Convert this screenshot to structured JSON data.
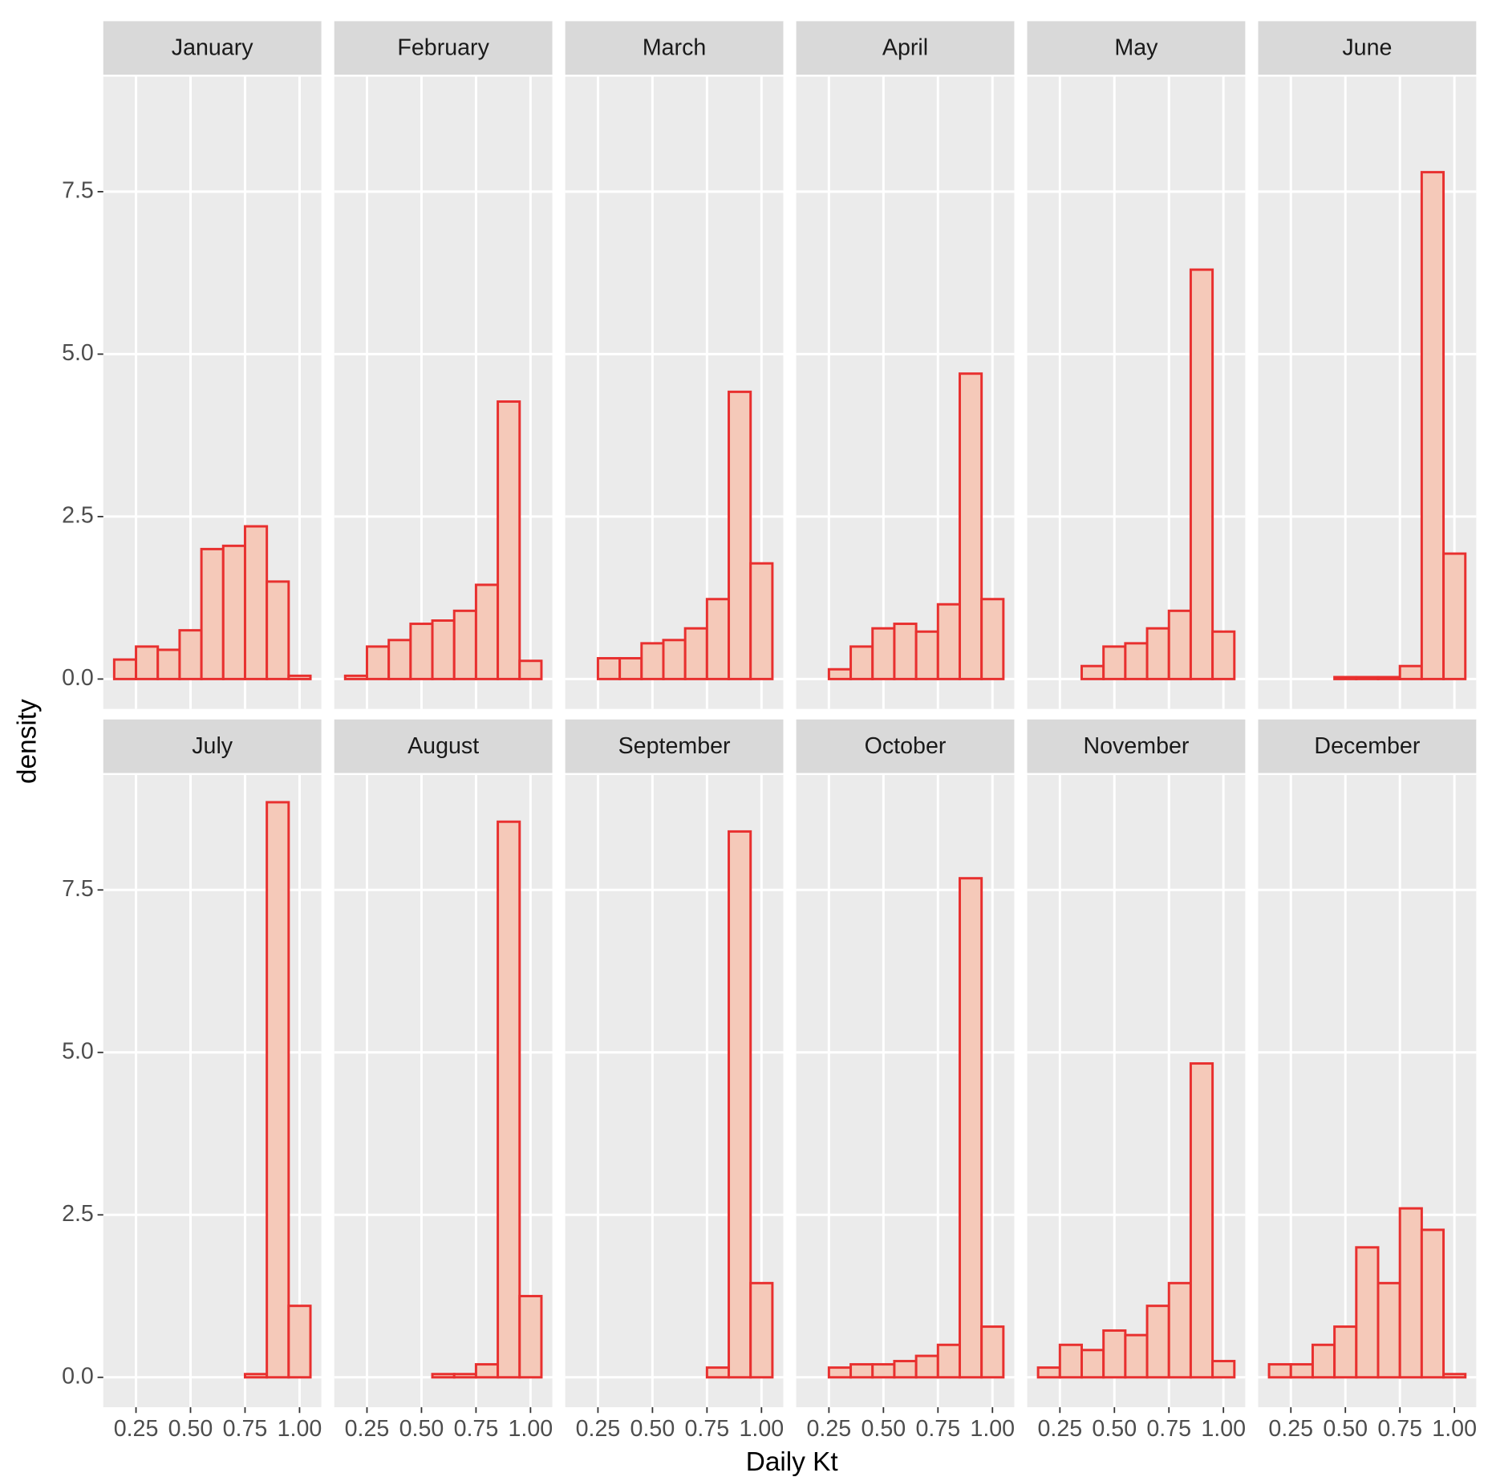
{
  "chart_data": {
    "type": "histogram",
    "x_label": "Daily Kt",
    "y_label": "density",
    "color": "#e8302f",
    "fill": "#f5c9b9",
    "grid": true,
    "bins": [
      0.15,
      0.25,
      0.35,
      0.45,
      0.55,
      0.65,
      0.75,
      0.85,
      0.95,
      1.05
    ],
    "xlim": [
      0.1,
      1.1
    ],
    "ylim": [
      -0.46,
      9.27
    ],
    "xticks": [
      0.25,
      {
        "value": 0.5,
        "label": "0.50"
      },
      0.75,
      {
        "value": 1,
        "label": "1.00"
      }
    ],
    "yticks": [
      {
        "value": 0,
        "label": "0.0"
      },
      2.5,
      {
        "value": 5,
        "label": "5.0"
      },
      7.5
    ],
    "facets": [
      {
        "title": "January",
        "values": [
          0.3,
          0.5,
          0.45,
          0.75,
          2.0,
          2.05,
          2.35,
          1.5,
          0.05
        ]
      },
      {
        "title": "February",
        "values": [
          0.05,
          0.5,
          0.6,
          0.85,
          0.9,
          1.05,
          1.45,
          4.27,
          0.28
        ]
      },
      {
        "title": "March",
        "values": [
          0,
          0.32,
          0.32,
          0.55,
          0.6,
          0.78,
          1.23,
          4.42,
          1.78
        ]
      },
      {
        "title": "April",
        "values": [
          0,
          0.15,
          0.5,
          0.78,
          0.85,
          0.73,
          1.15,
          4.7,
          1.23
        ]
      },
      {
        "title": "May",
        "values": [
          0,
          0,
          0.2,
          0.5,
          0.55,
          0.78,
          1.05,
          6.3,
          0.73
        ]
      },
      {
        "title": "June",
        "values": [
          0,
          0,
          0,
          0.03,
          0.03,
          0.03,
          0.2,
          7.8,
          1.93
        ]
      },
      {
        "title": "July",
        "values": [
          0,
          0,
          0,
          0,
          0,
          0,
          0.05,
          8.85,
          1.1
        ]
      },
      {
        "title": "August",
        "values": [
          0,
          0,
          0,
          0,
          0.05,
          0.05,
          0.2,
          8.55,
          1.25
        ]
      },
      {
        "title": "September",
        "values": [
          0,
          0,
          0,
          0,
          0,
          0,
          0.15,
          8.4,
          1.45
        ]
      },
      {
        "title": "October",
        "values": [
          0,
          0.15,
          0.2,
          0.2,
          0.25,
          0.33,
          0.5,
          7.68,
          0.78
        ]
      },
      {
        "title": "November",
        "values": [
          0.15,
          0.5,
          0.42,
          0.72,
          0.65,
          1.1,
          1.45,
          4.83,
          0.25
        ]
      },
      {
        "title": "December",
        "values": [
          0.2,
          0.2,
          0.5,
          0.78,
          2.0,
          1.45,
          2.6,
          2.27,
          0.05
        ]
      }
    ]
  }
}
